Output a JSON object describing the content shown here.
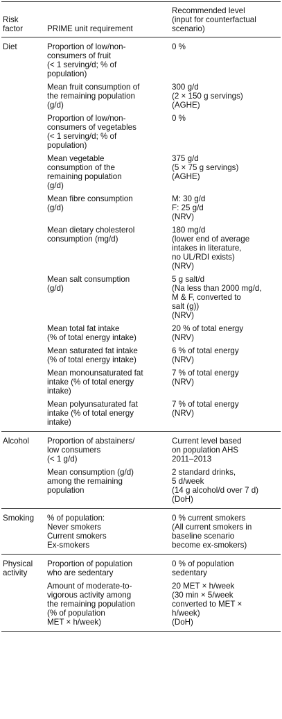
{
  "table": {
    "header": [
      [
        "Risk",
        "factor"
      ],
      [
        "PRIME unit requirement"
      ],
      [
        "Recommended level",
        "(input for counterfactual",
        "scenario)"
      ]
    ],
    "groups": [
      {
        "factor": [
          "Diet"
        ],
        "items": [
          {
            "requirement": [
              "Proportion of low/non-",
              "consumers of fruit",
              "(< 1 serving/d; % of",
              "population)"
            ],
            "level": [
              "0 %"
            ]
          },
          {
            "requirement": [
              "Mean fruit consumption of",
              "the remaining population",
              "(g/d)"
            ],
            "level": [
              "300 g/d",
              "(2 × 150 g servings)",
              "(AGHE)"
            ]
          },
          {
            "requirement": [
              "Proportion of low/non-",
              "consumers of vegetables",
              "(< 1 serving/d; % of",
              "population)"
            ],
            "level": [
              "0 %"
            ]
          },
          {
            "requirement": [
              "Mean vegetable",
              "consumption of the",
              "remaining population",
              "(g/d)"
            ],
            "level": [
              "375 g/d",
              "(5 × 75 g servings)",
              "(AGHE)"
            ]
          },
          {
            "requirement": [
              "Mean fibre consumption",
              "(g/d)"
            ],
            "level": [
              "M: 30 g/d",
              "F: 25 g/d",
              "(NRV)"
            ]
          },
          {
            "requirement": [
              "Mean dietary cholesterol",
              "consumption (mg/d)"
            ],
            "level": [
              "180 mg/d",
              "(lower end of average",
              "intakes in literature,",
              "no UL/RDI exists)",
              "(NRV)"
            ]
          },
          {
            "requirement": [
              "Mean salt consumption",
              "(g/d)"
            ],
            "level": [
              "5 g salt/d",
              "(Na less than 2000 mg/d,",
              "M & F, converted to",
              "salt (g))",
              "(NRV)"
            ]
          },
          {
            "requirement": [
              "Mean total fat intake",
              "(% of total energy intake)"
            ],
            "level": [
              "20 % of total energy",
              "(NRV)"
            ]
          },
          {
            "requirement": [
              "Mean saturated fat intake",
              "(% of total energy intake)"
            ],
            "level": [
              "6 % of total energy",
              "(NRV)"
            ]
          },
          {
            "requirement": [
              "Mean monounsaturated fat",
              "intake (% of total energy",
              "intake)"
            ],
            "level": [
              "7 % of total energy",
              "(NRV)"
            ]
          },
          {
            "requirement": [
              "Mean polyunsaturated fat",
              "intake (% of total energy",
              "intake)"
            ],
            "level": [
              "7 % of total energy",
              "(NRV)"
            ]
          }
        ]
      },
      {
        "factor": [
          "Alcohol"
        ],
        "items": [
          {
            "requirement": [
              "Proportion of abstainers/",
              "low consumers",
              "(< 1 g/d)"
            ],
            "level": [
              "Current level based",
              "on population AHS",
              "2011–2013"
            ]
          },
          {
            "requirement": [
              "Mean consumption (g/d)",
              "among the remaining",
              "population"
            ],
            "level": [
              "2 standard drinks,",
              "5 d/week",
              "(14 g alcohol/d over 7 d)",
              "(DoH)"
            ]
          }
        ]
      },
      {
        "factor": [
          "Smoking"
        ],
        "items": [
          {
            "requirement": [
              "% of population:",
              "Never smokers",
              "Current smokers",
              "Ex-smokers"
            ],
            "level": [
              "0 % current smokers",
              "(All current smokers in",
              "baseline scenario",
              "become ex-smokers)"
            ]
          }
        ]
      },
      {
        "factor": [
          "Physical",
          "activity"
        ],
        "items": [
          {
            "requirement": [
              "Proportion of population",
              "who are sedentary"
            ],
            "level": [
              "0 % of population",
              "sedentary"
            ]
          },
          {
            "requirement": [
              "Amount of moderate-to-",
              "vigorous activity among",
              "the remaining population",
              "(% of population",
              "MET × h/week)"
            ],
            "level": [
              "20 MET × h/week",
              "(30 min × 5/week",
              "converted to MET ×",
              "h/week)",
              "(DoH)"
            ]
          }
        ]
      }
    ]
  }
}
